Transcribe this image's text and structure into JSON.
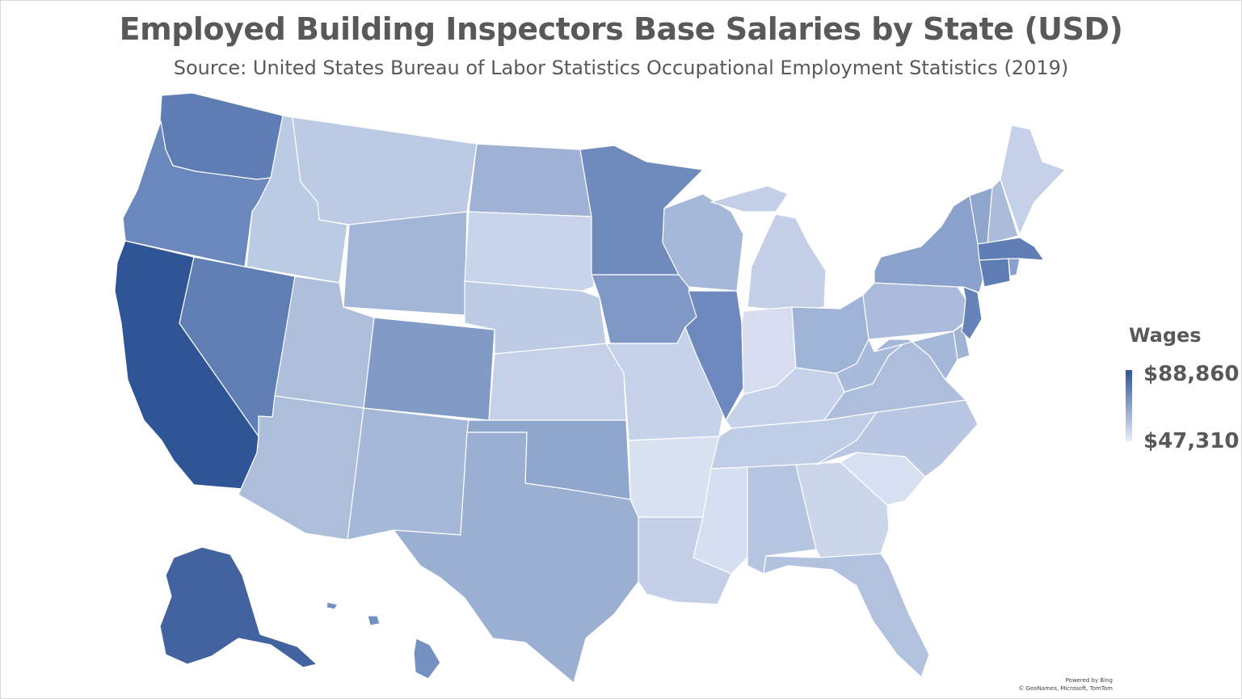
{
  "title": "Employed Building Inspectors Base Salaries by State (USD)",
  "subtitle": "Source: United States Bureau of Labor Statistics Occupational Employment Statistics (2019)",
  "legend": {
    "title": "Wages",
    "max_label": "$88,860",
    "min_label": "$47,310",
    "max_color": "#2f5597",
    "min_color": "#e8edf7"
  },
  "credits": {
    "line1": "Powered by Bing",
    "line2": "© GeoNames, Microsoft, TomTom"
  },
  "chart_data": {
    "type": "choropleth",
    "value_range": [
      47310,
      88860
    ],
    "colors": {
      "WA": "#5d7db4",
      "OR": "#6b88bc",
      "CA": "#2f5597",
      "NV": "#607fb5",
      "ID": "#bccbe4",
      "MT": "#bccbe3",
      "WY": "#a3b6d7",
      "UT": "#aebfdc",
      "AZ": "#adbedb",
      "CO": "#819ac6",
      "NM": "#a6b8d8",
      "ND": "#9fb2d5",
      "SD": "#c8d4ea",
      "NE": "#bdcbe4",
      "KS": "#c5d1e8",
      "OK": "#8fa6cd",
      "TX": "#9bafd3",
      "MN": "#6f8bbe",
      "IA": "#7f98c5",
      "MO": "#c5d2e9",
      "AR": "#d9e2f1",
      "LA": "#c3d0e7",
      "WI": "#a5b8d9",
      "IL": "#6d89bd",
      "MI": "#c3d0e8",
      "IN": "#d5ddef",
      "OH": "#9fb3d6",
      "KY": "#c6d2e9",
      "TN": "#bfcde6",
      "MS": "#d6dff0",
      "AL": "#b6c6e1",
      "GA": "#cbd6eb",
      "FL": "#b1c1de",
      "SC": "#d7e0f0",
      "NC": "#b9c7e2",
      "VA": "#adbedc",
      "WV": "#a9bbda",
      "PA": "#aabbdb",
      "NY": "#8aa2cb",
      "VT": "#8fa6cd",
      "NH": "#aabcda",
      "ME": "#c4d1e8",
      "MA": "#5f7eb5",
      "RI": "#8aa2cb",
      "CT": "#5e7db4",
      "NJ": "#6683b9",
      "DE": "#9fb3d5",
      "MD": "#a5b7d8",
      "AK": "#4262a0",
      "HI": "#7591c1"
    }
  }
}
